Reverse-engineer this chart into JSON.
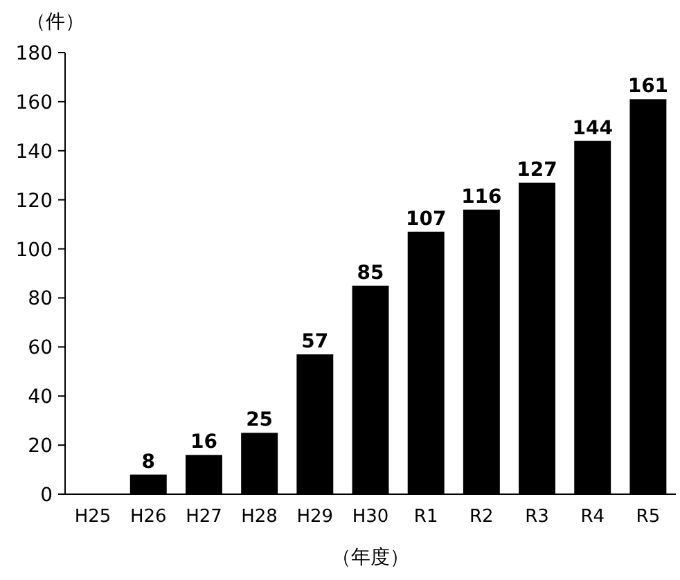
{
  "chart_data": {
    "type": "bar",
    "ylabel": "（件）",
    "xlabel": "（年度）",
    "categories": [
      "H25",
      "H26",
      "H27",
      "H28",
      "H29",
      "H30",
      "R1",
      "R2",
      "R3",
      "R4",
      "R5"
    ],
    "values": [
      null,
      8,
      16,
      25,
      57,
      85,
      107,
      116,
      127,
      144,
      161
    ],
    "color": "#000000",
    "ylim": [
      0,
      180
    ],
    "yticks": [
      0,
      20,
      40,
      60,
      80,
      100,
      120,
      140,
      160,
      180
    ],
    "data_labels": true
  }
}
